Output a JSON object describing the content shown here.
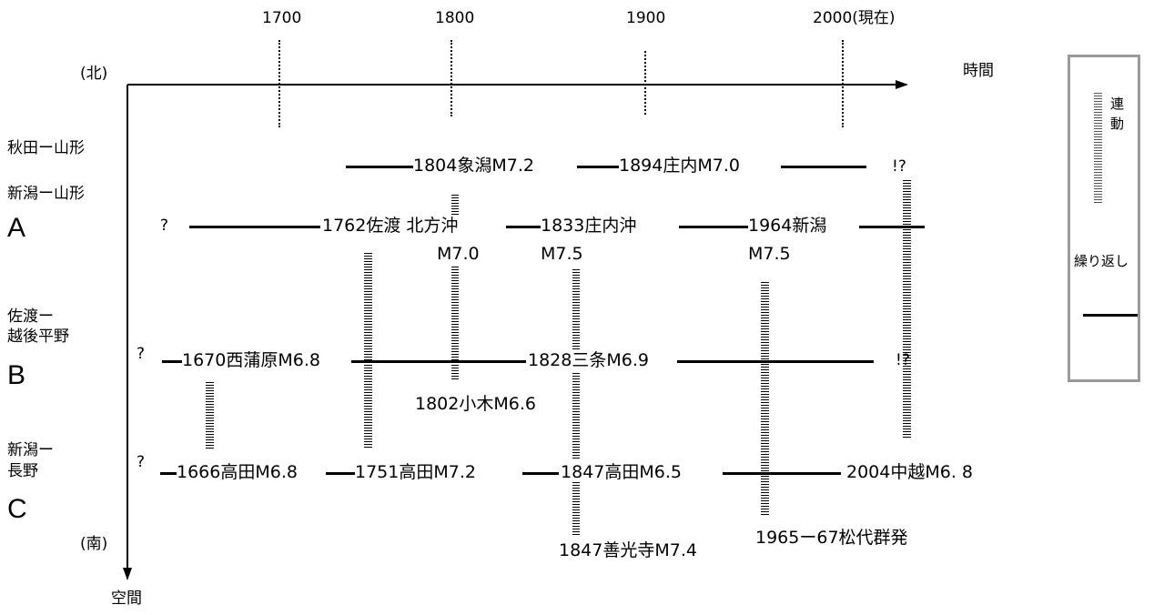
{
  "time_axis": {
    "label": "時間",
    "ticks": [
      "1700",
      "1800",
      "1900",
      "2000(現在)"
    ],
    "north_label": "(北)"
  },
  "space_axis": {
    "label": "空間",
    "south_label": "(南)"
  },
  "regions": {
    "akita_yamagata": "秋田ー山形",
    "niigata_yamagata": "新潟ー山形",
    "a_letter": "A",
    "sado_1": "佐渡ー",
    "sado_2": "越後平野",
    "b_letter": "B",
    "niigata_nagano_1": "新潟ー",
    "niigata_nagano_2": "長野",
    "c_letter": "C"
  },
  "events": {
    "kisakata": "1804象潟M7.2",
    "shonai": "1894庄内M7.0",
    "akita_q": "!?",
    "a_q": "?",
    "sado": "1762佐渡 北方沖",
    "sado_m": "M7.0",
    "shonai_oki": "1833庄内沖",
    "shonai_oki_m": "M7.5",
    "niigata": "1964新潟",
    "niigata_m": "M7.5",
    "b_q": "?",
    "nishikanbara": "1670西蒲原M6.8",
    "sanjo": "1828三条M6.9",
    "b_end_q": "!?",
    "ogi": "1802小木M6.6",
    "c_q": "?",
    "takada1666": "1666高田M6.8",
    "takada1751": "1751高田M7.2",
    "takada1847": "1847高田M6.5",
    "chuetsu": "2004中越M6. 8",
    "zenkoji": "1847善光寺M7.4",
    "matsushiro": "1965ー67松代群発"
  },
  "legend": {
    "linked_1": "連",
    "linked_2": "動",
    "recurrence": "繰り返し"
  }
}
